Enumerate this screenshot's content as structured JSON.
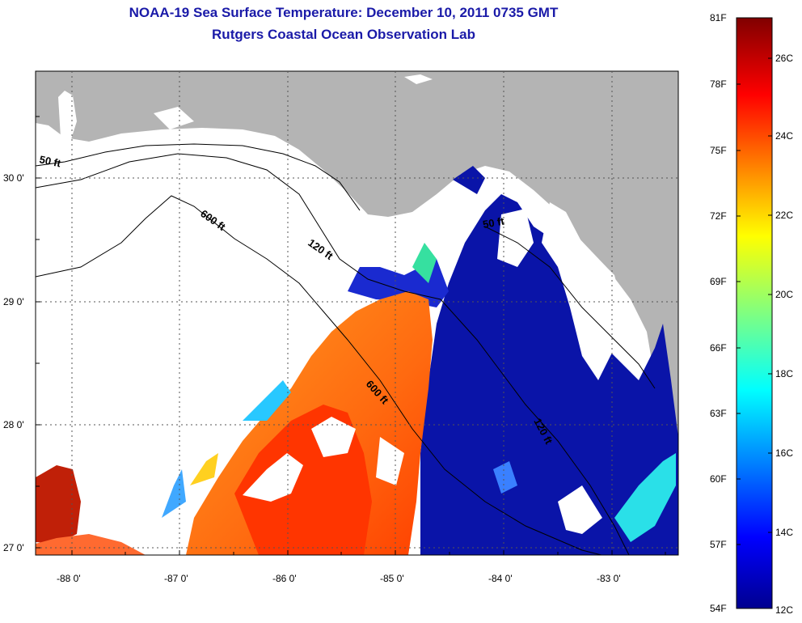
{
  "header": {
    "title": "NOAA-19 Sea Surface Temperature:  December 10, 2011 0735 GMT",
    "subtitle": "Rutgers Coastal Ocean Observation Lab"
  },
  "map": {
    "latitude_labels": [
      "30 0'",
      "29 0'",
      "28 0'",
      "27 0'"
    ],
    "longitude_labels": [
      "-88 0'",
      "-87 0'",
      "-86 0'",
      "-85 0'",
      "-84 0'",
      "-83 0'"
    ],
    "contour_labels": [
      "50 ft",
      "600 ft",
      "120 ft",
      "600 ft",
      "50 ft",
      "120 ft"
    ],
    "colors": {
      "land": "#b4b4b4",
      "cloud": "#ffffff",
      "cold": "#0a14a0",
      "warm": "#ff7a18"
    }
  },
  "colorbar": {
    "fahrenheit_labels": [
      "81F",
      "78F",
      "75F",
      "72F",
      "69F",
      "66F",
      "63F",
      "60F",
      "57F",
      "54F"
    ],
    "celsius_labels": [
      "26C",
      "24C",
      "22C",
      "20C",
      "18C",
      "16C",
      "14C",
      "12C"
    ],
    "range_f": [
      54,
      81
    ],
    "range_c": [
      12,
      27.2
    ]
  }
}
